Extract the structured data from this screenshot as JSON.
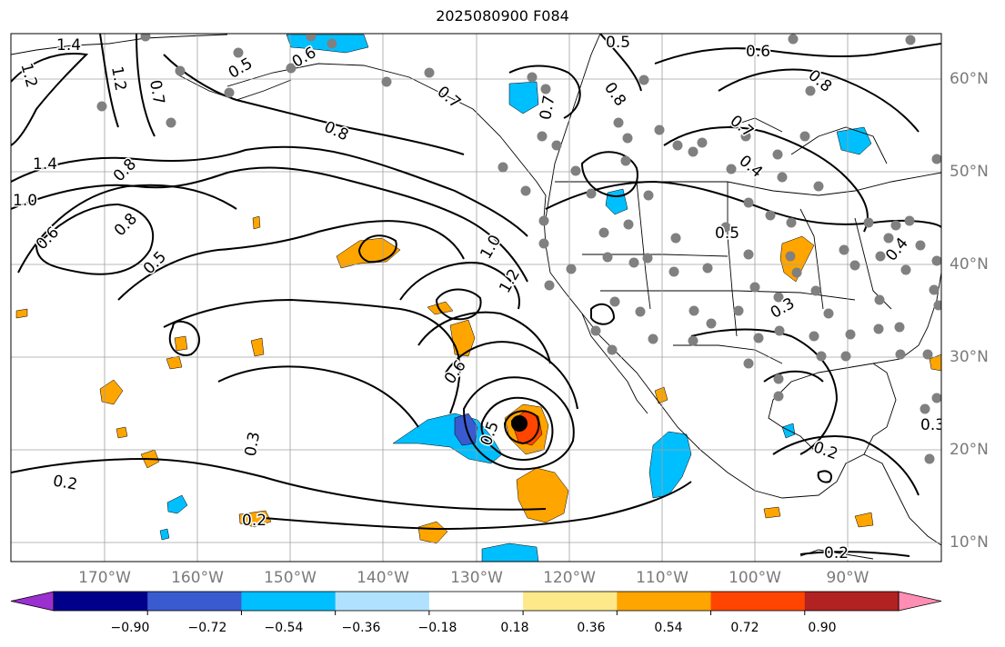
{
  "title": "2025080900 F084",
  "lon_labels": [
    "170°W",
    "160°W",
    "150°W",
    "140°W",
    "130°W",
    "120°W",
    "110°W",
    "100°W",
    "90°W"
  ],
  "lat_labels": [
    "60°N",
    "50°N",
    "40°N",
    "30°N",
    "20°N",
    "10°N"
  ],
  "contour_labels": [
    "1.4",
    "1.2",
    "1.2",
    "1.0",
    "0.7",
    "1.4",
    "0.8",
    "0.6",
    "0.8",
    "0.5",
    "0.5",
    "0.6",
    "0.8",
    "0.7",
    "0.7",
    "0.8",
    "1.0",
    "1.2",
    "0.6",
    "0.5",
    "0.3",
    "0.2",
    "0.2",
    "0.5",
    "0.6",
    "0.8",
    "0.7",
    "0.4",
    "0.5",
    "0.3",
    "0.2",
    "0.2",
    "0.3",
    "0.4"
  ],
  "colorbar": {
    "ticks": [
      "−0.90",
      "−0.72",
      "−0.54",
      "−0.36",
      "−0.18",
      "0.18",
      "0.36",
      "0.54",
      "0.72",
      "0.90"
    ],
    "colors": [
      "#9b30d0",
      "#00008b",
      "#3a5bd0",
      "#00bfff",
      "#b0e2ff",
      "#ffffff",
      "#fde98a",
      "#ffa500",
      "#ff4500",
      "#b22222",
      "#ff8db4"
    ]
  },
  "colors": {
    "land_outline": "#000000",
    "grid": "#a0a0a0",
    "station": "#808080"
  }
}
